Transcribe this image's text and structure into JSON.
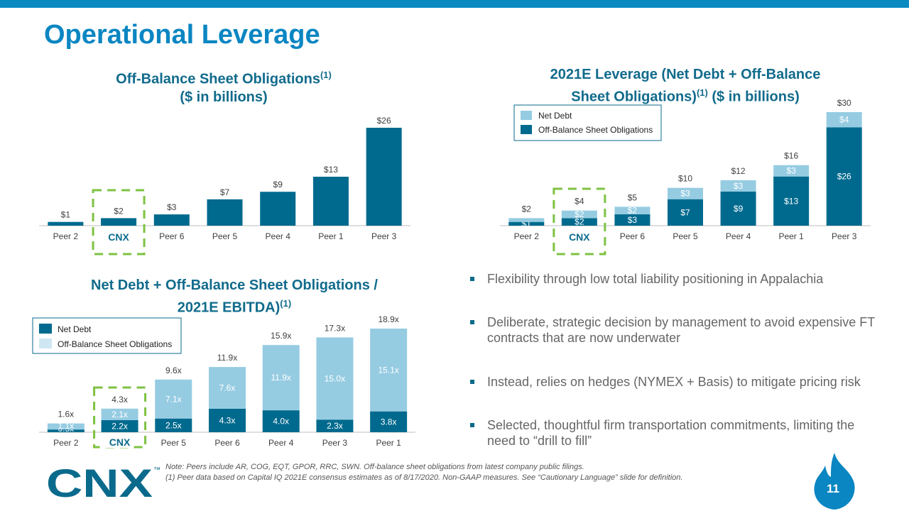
{
  "page": {
    "title": "Operational Leverage",
    "page_number": "11"
  },
  "colors": {
    "dark": "#006a8e",
    "light": "#96cce2",
    "accent": "#0a86c2",
    "dashed_green": "#7ec242"
  },
  "bullets": [
    "Flexibility through low total liability positioning in Appalachia",
    "Deliberate, strategic decision by management to avoid expensive FT contracts that are now underwater",
    "Instead, relies on hedges (NYMEX + Basis) to mitigate pricing risk",
    "Selected, thoughtful firm transportation commitments, limiting the need to “drill to fill”"
  ],
  "notes": {
    "line1": "Note: Peers include AR, COG, EQT, GPOR, RRC, SWN. Off-balance sheet obligations from latest company public filings.",
    "line2": "(1) Peer data based on Capital IQ 2021E consensus estimates as of 8/17/2020. Non-GAAP measures. See “Cautionary Language” slide for definition."
  },
  "logo": {
    "text": "CNX",
    "tm": "™"
  },
  "chart_data": [
    {
      "id": "obs",
      "type": "bar",
      "title_line1": "Off-Balance Sheet Obligations",
      "title_sup": "(1)",
      "title_line2": "($ in billions)",
      "categories": [
        "Peer 2",
        "CNX",
        "Peer 6",
        "Peer 5",
        "Peer 4",
        "Peer 1",
        "Peer 3"
      ],
      "values": [
        1,
        2,
        3,
        7,
        9,
        13,
        26
      ],
      "labels": [
        "$1",
        "$2",
        "$3",
        "$7",
        "$9",
        "$13",
        "$26"
      ],
      "ylim": [
        0,
        26
      ],
      "highlight_category": "CNX"
    },
    {
      "id": "lev",
      "type": "stacked_bar",
      "title_line1": "2021E Leverage (Net Debt + Off-Balance",
      "title_line2": "Sheet Obligations)",
      "title_sup": "(1)",
      "title_suffix": " ($ in billions)",
      "categories": [
        "Peer 2",
        "CNX",
        "Peer 6",
        "Peer 5",
        "Peer 4",
        "Peer 1",
        "Peer 3"
      ],
      "series": [
        {
          "name": "Off-Balance Sheet Obligations",
          "color": "#006a8e",
          "values": [
            1,
            2,
            3,
            7,
            9,
            13,
            26
          ],
          "labels": [
            "$1",
            "$2",
            "$3",
            "$7",
            "$9",
            "$13",
            "$26"
          ]
        },
        {
          "name": "Net Debt",
          "color": "#96cce2",
          "values": [
            1,
            2,
            2,
            3,
            3,
            3,
            4
          ],
          "labels": [
            "",
            "$2",
            "$2",
            "$3",
            "$3",
            "$3",
            "$4"
          ]
        }
      ],
      "totals": [
        "$2",
        "$4",
        "$5",
        "$10",
        "$12",
        "$16",
        "$30"
      ],
      "legend": [
        "Net Debt",
        "Off-Balance Sheet Obligations"
      ],
      "ylim": [
        0,
        30
      ],
      "highlight_category": "CNX"
    },
    {
      "id": "ratio",
      "type": "stacked_bar",
      "title_line1": "Net Debt + Off-Balance Sheet Obligations /",
      "title_line2": "2021E EBITDA)",
      "title_sup": "(1)",
      "categories": [
        "Peer 2",
        "CNX",
        "Peer 5",
        "Peer 6",
        "Peer 4",
        "Peer 3",
        "Peer 1"
      ],
      "series": [
        {
          "name": "Net Debt",
          "color": "#006a8e",
          "values": [
            0.5,
            2.2,
            2.5,
            4.3,
            4.0,
            2.3,
            3.8
          ],
          "labels": [
            "0.5x",
            "2.2x",
            "2.5x",
            "4.3x",
            "4.0x",
            "2.3x",
            "3.8x"
          ]
        },
        {
          "name": "Off-Balance Sheet Obligations",
          "color": "#96cce2",
          "values": [
            1.1,
            2.1,
            7.1,
            7.6,
            11.9,
            15.0,
            15.1
          ],
          "labels": [
            "1.1x",
            "2.1x",
            "7.1x",
            "7.6x",
            "11.9x",
            "15.0x",
            "15.1x"
          ]
        }
      ],
      "totals": [
        "1.6x",
        "4.3x",
        "9.6x",
        "11.9x",
        "15.9x",
        "17.3x",
        "18.9x"
      ],
      "legend": [
        "Net Debt",
        "Off-Balance Sheet Obligations"
      ],
      "ylim": [
        0,
        18.9
      ],
      "highlight_category": "CNX"
    }
  ]
}
